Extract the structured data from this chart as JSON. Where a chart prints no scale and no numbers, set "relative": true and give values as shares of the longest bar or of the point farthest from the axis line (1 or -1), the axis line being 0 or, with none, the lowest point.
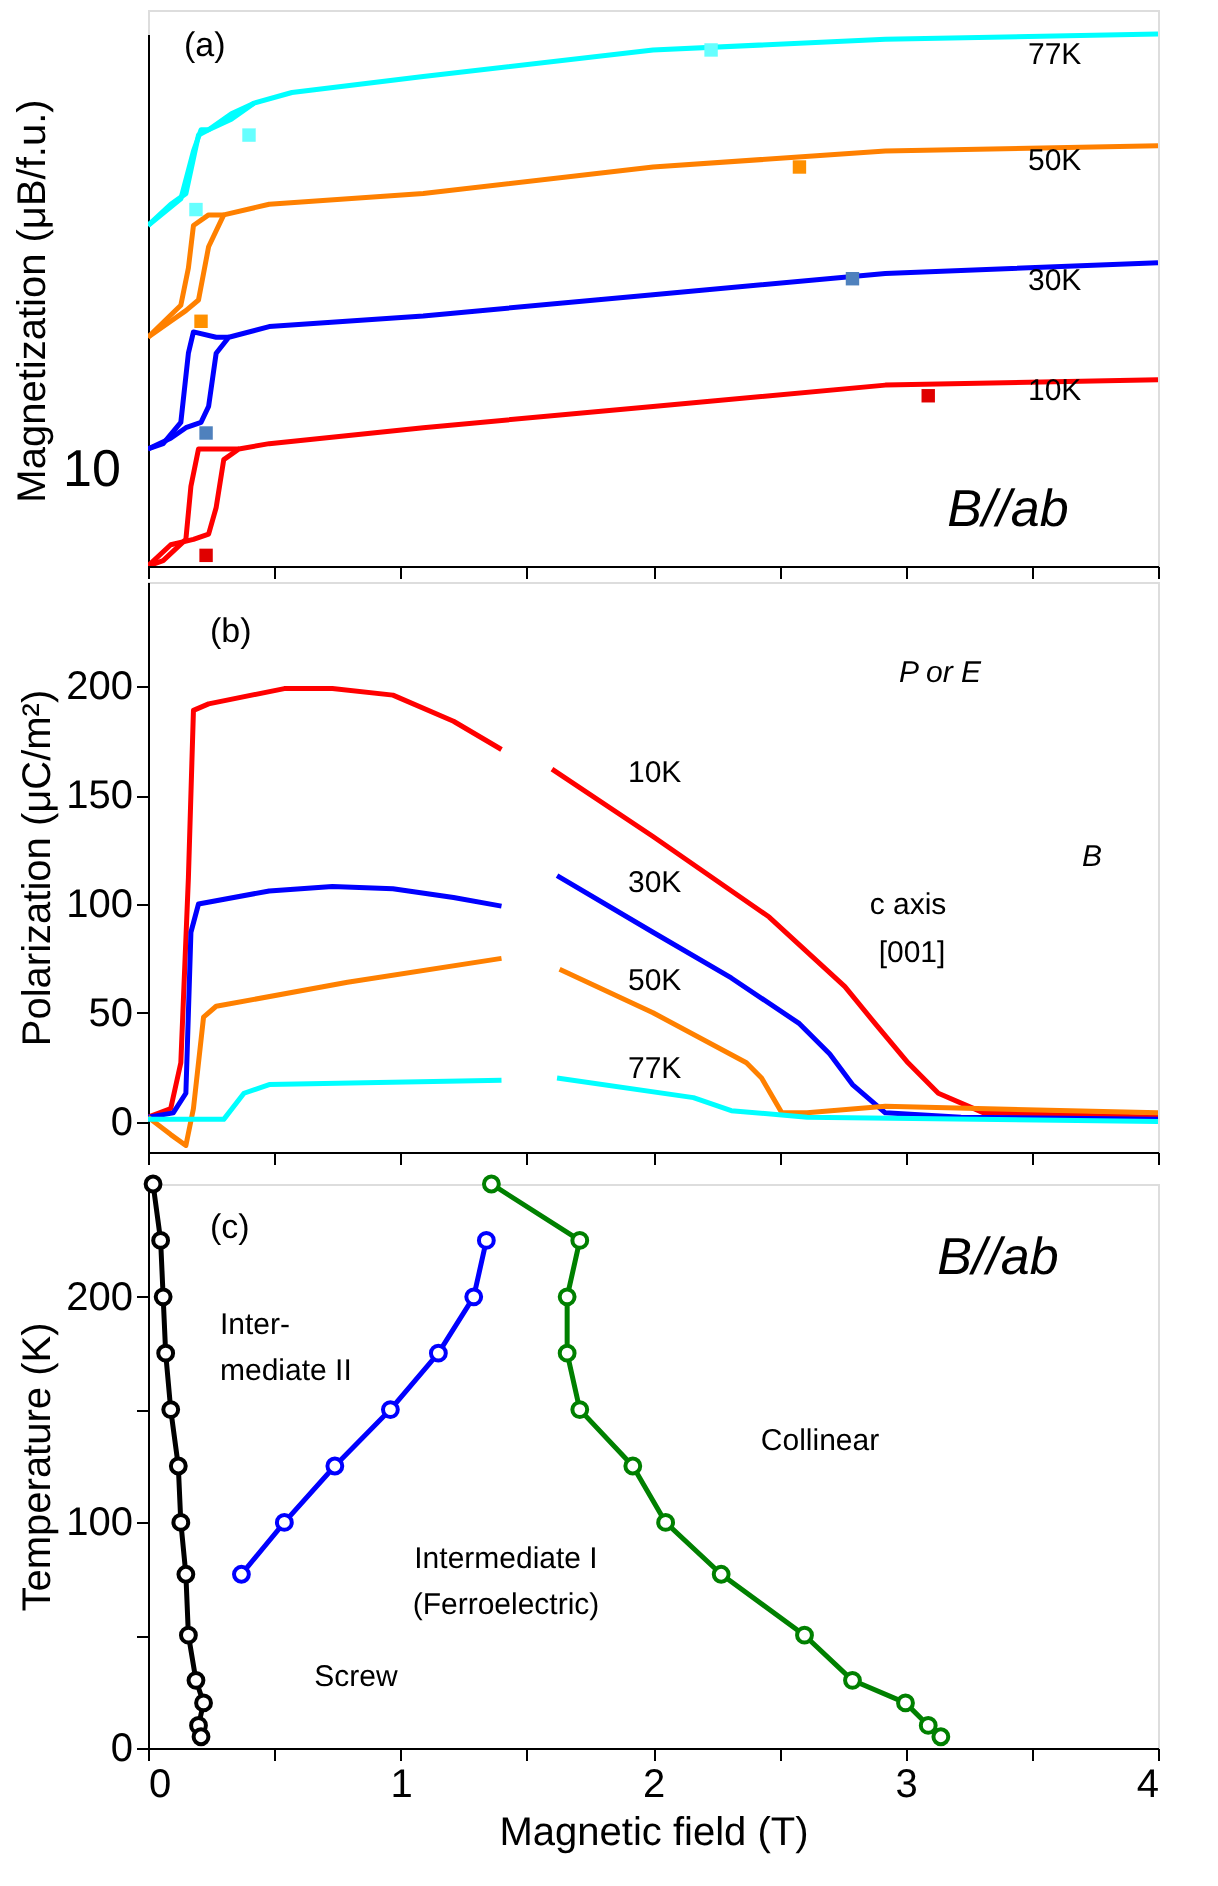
{
  "chart_data": [
    {
      "type": "line",
      "relative": true,
      "tick_labels": false,
      "ylabel": "Magnetization (μB/f.u.)",
      "xlim": [
        0,
        4
      ],
      "xticks": [
        0,
        {
          "value": 0.5,
          "label": null
        },
        1,
        {
          "value": 1.5,
          "label": null
        },
        2,
        {
          "value": 2.5,
          "label": null
        },
        3,
        {
          "value": 3.5,
          "label": null
        },
        4
      ],
      "annotations": [
        "(a)",
        "B//ab",
        "10"
      ],
      "series": [
        {
          "name": "10K",
          "color": "#ff0000",
          "x": [
            0,
            0.09,
            0.18,
            0.24,
            0.27,
            0.3,
            0.36,
            0.48,
            1.09,
            2.0,
            2.92,
            4.0
          ],
          "values": [
            0,
            0.04,
            0.05,
            0.06,
            0.11,
            0.2,
            0.22,
            0.23,
            0.26,
            0.3,
            0.34,
            0.35
          ]
        },
        {
          "name": "30K",
          "color": "#0000ff",
          "x": [
            0,
            0.09,
            0.15,
            0.21,
            0.24,
            0.27,
            0.32,
            0.48,
            1.09,
            2.0,
            2.92,
            4.0
          ],
          "values": [
            0.22,
            0.24,
            0.26,
            0.27,
            0.3,
            0.4,
            0.43,
            0.45,
            0.47,
            0.51,
            0.55,
            0.57
          ]
        },
        {
          "name": "50K",
          "color": "#ff8000",
          "x": [
            0,
            0.09,
            0.15,
            0.2,
            0.24,
            0.3,
            0.48,
            1.09,
            2.0,
            2.92,
            4.0
          ],
          "values": [
            0.43,
            0.46,
            0.48,
            0.5,
            0.6,
            0.66,
            0.68,
            0.7,
            0.75,
            0.78,
            0.79
          ]
        },
        {
          "name": "77K",
          "color": "#00ffff",
          "x": [
            0,
            0.09,
            0.15,
            0.2,
            0.24,
            0.33,
            0.42,
            0.57,
            1.09,
            2.0,
            2.92,
            4.0
          ],
          "values": [
            0.64,
            0.68,
            0.7,
            0.81,
            0.82,
            0.84,
            0.87,
            0.89,
            0.92,
            0.97,
            0.99,
            1.0
          ]
        },
        {
          "color": "#ff0000",
          "x": [
            0.36,
            0.3,
            0.2,
            0.17,
            0.15,
            0.06,
            0
          ],
          "values": [
            0.22,
            0.22,
            0.22,
            0.15,
            0.05,
            0.01,
            0
          ]
        },
        {
          "color": "#0000ff",
          "x": [
            0.32,
            0.27,
            0.18,
            0.16,
            0.13,
            0.06,
            0
          ],
          "values": [
            0.43,
            0.43,
            0.44,
            0.4,
            0.27,
            0.23,
            0.22
          ]
        },
        {
          "color": "#ff8000",
          "x": [
            0.3,
            0.24,
            0.18,
            0.16,
            0.13,
            0
          ],
          "values": [
            0.66,
            0.66,
            0.64,
            0.56,
            0.49,
            0.43
          ]
        },
        {
          "color": "#00ffff",
          "x": [
            0.42,
            0.33,
            0.24,
            0.21,
            0.18,
            0.13,
            0
          ],
          "values": [
            0.87,
            0.85,
            0.82,
            0.82,
            0.78,
            0.69,
            0.64
          ]
        },
        {
          "type": "scatter",
          "marker": "square",
          "colors": [
            "#e00000",
            "#e00000",
            "#4f81bd",
            "#4f81bd",
            "#ff9000",
            "#ff9000",
            "#66ffff",
            "#66ffff",
            "#66ffff"
          ],
          "x": [
            0.23,
            3.09,
            0.23,
            2.79,
            0.21,
            2.58,
            0.19,
            0.4,
            2.23
          ],
          "values": [
            0.02,
            0.32,
            0.25,
            0.54,
            0.46,
            0.75,
            0.67,
            0.81,
            0.97
          ]
        }
      ]
    },
    {
      "type": "line",
      "tick_labels": "y",
      "ylabel": "Polarization (μC/m²)",
      "xlim": [
        0,
        4
      ],
      "ylim": [
        -14,
        248
      ],
      "xticks": [
        0,
        {
          "value": 0.5,
          "label": null
        },
        1,
        {
          "value": 1.5,
          "label": null
        },
        2,
        {
          "value": 2.5,
          "label": null
        },
        3,
        {
          "value": 3.5,
          "label": null
        },
        4
      ],
      "yticks": [
        0,
        50,
        100,
        150,
        200
      ],
      "annotations": [
        "(b)",
        "P or E",
        "B",
        "c axis",
        "[001]"
      ],
      "series": [
        {
          "name": "10K",
          "color": "#ff0000",
          "x": [
            0,
            0.09,
            0.13,
            0.16,
            0.18,
            0.24,
            0.54,
            0.73,
            0.97,
            1.21,
            1.4,
            1.5,
            1.6,
            2.0,
            2.46,
            2.76,
            2.88,
            3.01,
            3.13,
            3.31,
            4.0
          ],
          "values": [
            2,
            6,
            27,
            112,
            189,
            192,
            199,
            199,
            196,
            184,
            171,
            null,
            162,
            131,
            94,
            62,
            45,
            27,
            13,
            4,
            2
          ]
        },
        {
          "name": "30K",
          "color": "#0000ff",
          "x": [
            0,
            0.1,
            0.15,
            0.17,
            0.2,
            0.48,
            0.73,
            0.97,
            1.21,
            1.4,
            1.5,
            1.62,
            2.0,
            2.31,
            2.58,
            2.7,
            2.79,
            2.92,
            3.22,
            4.0
          ],
          "values": [
            2,
            4,
            13,
            87,
            100,
            106,
            108,
            107,
            103,
            99,
            null,
            113,
            87,
            66,
            45,
            31,
            17,
            4,
            2,
            1
          ]
        },
        {
          "name": "50K",
          "color": "#ff8000",
          "x": [
            0,
            0.09,
            0.15,
            0.18,
            0.22,
            0.27,
            0.79,
            1.4,
            1.5,
            1.63,
            2.0,
            2.37,
            2.43,
            2.51,
            2.61,
            2.92,
            4.0
          ],
          "values": [
            2,
            -6,
            -11,
            6,
            48,
            53,
            64,
            75,
            null,
            70,
            50,
            27,
            20,
            4,
            4,
            7,
            4
          ]
        },
        {
          "name": "77K",
          "color": "#00ffff",
          "x": [
            0,
            0.3,
            0.38,
            0.48,
            1.4,
            1.5,
            1.62,
            2.16,
            2.31,
            2.61,
            4.0
          ],
          "values": [
            1,
            1,
            13,
            17,
            19,
            null,
            20,
            11,
            5,
            2,
            0
          ]
        }
      ]
    },
    {
      "type": "line",
      "marker": "circle",
      "xlabel": "Magnetic field (T)",
      "ylabel": "Temperature (K)",
      "xlim": [
        0,
        4
      ],
      "ylim": [
        0,
        250
      ],
      "xticks": [
        0,
        {
          "value": 0.5,
          "label": null
        },
        1,
        {
          "value": 1.5,
          "label": null
        },
        2,
        {
          "value": 2.5,
          "label": null
        },
        3,
        {
          "value": 3.5,
          "label": null
        },
        4
      ],
      "yticks": [
        0,
        {
          "value": 50,
          "label": null
        },
        100,
        {
          "value": 150,
          "label": null
        },
        200
      ],
      "annotations": [
        "(c)",
        "B//ab",
        "Inter-",
        "mediate II",
        "Collinear",
        "Intermediate I",
        "(Ferroelectric)",
        "Screw"
      ],
      "series": [
        {
          "color": "#000000",
          "x": [
            0.02,
            0.05,
            0.06,
            0.07,
            0.09,
            0.12,
            0.13,
            0.15,
            0.16,
            0.19,
            0.22,
            0.2,
            0.21
          ],
          "values": [
            250,
            225,
            200,
            175,
            150,
            125,
            100,
            77,
            50,
            30,
            20,
            10,
            5
          ]
        },
        {
          "color": "#0000ff",
          "x": [
            0.37,
            0.54,
            0.74,
            0.96,
            1.15,
            1.29,
            1.34
          ],
          "values": [
            77,
            100,
            125,
            150,
            175,
            200,
            225
          ]
        },
        {
          "color": "#008000",
          "x": [
            1.36,
            1.71,
            1.66,
            1.66,
            1.71,
            1.92,
            2.05,
            2.27,
            2.6,
            2.79,
            3.0,
            3.09,
            3.14
          ],
          "values": [
            250,
            225,
            200,
            175,
            150,
            125,
            100,
            77,
            50,
            30,
            20,
            10,
            5
          ]
        }
      ]
    }
  ]
}
